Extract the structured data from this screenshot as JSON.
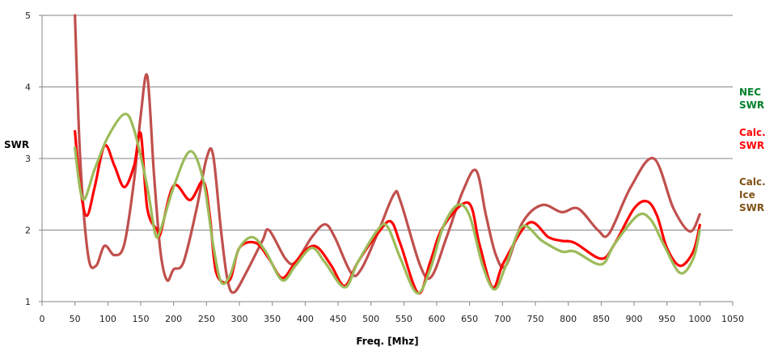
{
  "chart_data": {
    "type": "line",
    "title": "",
    "xlabel": "Freq. [Mhz]",
    "ylabel": "SWR",
    "xlim": [
      0,
      1050
    ],
    "ylim": [
      1,
      5
    ],
    "xticks": [
      0,
      50,
      100,
      150,
      200,
      250,
      300,
      350,
      400,
      450,
      500,
      550,
      600,
      650,
      700,
      750,
      800,
      850,
      900,
      950,
      1000,
      1050
    ],
    "yticks": [
      1,
      2,
      3,
      4,
      5
    ],
    "grid": "horizontal",
    "legend_placement": "right",
    "series": [
      {
        "name": "NEC SWR",
        "legend_lines": [
          "NEC",
          "SWR"
        ],
        "color": "#9bbb59",
        "legend_color": "#00802b",
        "x": [
          50,
          62,
          80,
          100,
          125,
          140,
          160,
          172,
          180,
          200,
          225,
          245,
          260,
          272,
          285,
          300,
          320,
          340,
          365,
          385,
          410,
          430,
          460,
          480,
          510,
          525,
          545,
          570,
          590,
          610,
          632,
          650,
          670,
          688,
          705,
          730,
          760,
          790,
          810,
          850,
          870,
          905,
          925,
          945,
          970,
          990,
          1000
        ],
        "y": [
          3.15,
          2.43,
          2.85,
          3.3,
          3.62,
          3.4,
          2.6,
          1.95,
          2.0,
          2.6,
          3.1,
          2.7,
          1.8,
          1.28,
          1.35,
          1.75,
          1.9,
          1.7,
          1.3,
          1.5,
          1.75,
          1.55,
          1.2,
          1.55,
          2.0,
          2.05,
          1.6,
          1.12,
          1.45,
          2.05,
          2.35,
          2.2,
          1.5,
          1.17,
          1.5,
          2.05,
          1.85,
          1.7,
          1.7,
          1.52,
          1.8,
          2.2,
          2.15,
          1.8,
          1.4,
          1.6,
          2.0
        ]
      },
      {
        "name": "Calc. SWR",
        "legend_lines": [
          "Calc.",
          "SWR"
        ],
        "color": "#ff0000",
        "legend_color": "#ff0000",
        "x": [
          50,
          58,
          68,
          80,
          95,
          110,
          125,
          140,
          150,
          160,
          175,
          180,
          200,
          225,
          245,
          255,
          265,
          285,
          300,
          325,
          345,
          365,
          385,
          405,
          420,
          440,
          460,
          480,
          510,
          530,
          545,
          572,
          590,
          610,
          648,
          665,
          685,
          702,
          740,
          770,
          790,
          810,
          850,
          870,
          900,
          920,
          935,
          950,
          970,
          990,
          1000
        ],
        "y": [
          3.38,
          2.6,
          2.2,
          2.6,
          3.18,
          2.9,
          2.6,
          2.9,
          3.35,
          2.3,
          2.0,
          1.95,
          2.62,
          2.42,
          2.68,
          2.2,
          1.4,
          1.3,
          1.75,
          1.82,
          1.6,
          1.33,
          1.55,
          1.75,
          1.75,
          1.5,
          1.22,
          1.55,
          1.95,
          2.12,
          1.8,
          1.12,
          1.55,
          2.05,
          2.38,
          1.8,
          1.2,
          1.55,
          2.1,
          1.9,
          1.85,
          1.82,
          1.6,
          1.8,
          2.3,
          2.4,
          2.2,
          1.75,
          1.5,
          1.7,
          2.07
        ]
      },
      {
        "name": "Calc. Ice SWR",
        "legend_lines": [
          "Calc.",
          "Ice",
          "SWR"
        ],
        "color": "#c0504d",
        "legend_color": "#7f5217",
        "x": [
          50,
          58,
          70,
          82,
          95,
          110,
          125,
          140,
          150,
          160,
          170,
          180,
          190,
          200,
          215,
          235,
          250,
          260,
          272,
          282,
          292,
          310,
          335,
          345,
          370,
          385,
          410,
          430,
          445,
          470,
          485,
          510,
          535,
          545,
          575,
          592,
          615,
          640,
          660,
          675,
          690,
          705,
          730,
          760,
          790,
          815,
          845,
          862,
          895,
          930,
          960,
          985,
          1000
        ],
        "y": [
          5.0,
          3.0,
          1.65,
          1.5,
          1.78,
          1.65,
          1.8,
          2.7,
          3.6,
          4.15,
          2.8,
          1.7,
          1.3,
          1.45,
          1.55,
          2.3,
          3.0,
          3.05,
          2.0,
          1.3,
          1.13,
          1.4,
          1.85,
          2.0,
          1.6,
          1.55,
          1.9,
          2.08,
          1.9,
          1.4,
          1.45,
          1.95,
          2.5,
          2.4,
          1.5,
          1.35,
          1.9,
          2.55,
          2.83,
          2.2,
          1.65,
          1.5,
          2.1,
          2.35,
          2.25,
          2.3,
          2.0,
          1.95,
          2.6,
          3.0,
          2.3,
          1.98,
          2.22
        ]
      }
    ]
  }
}
